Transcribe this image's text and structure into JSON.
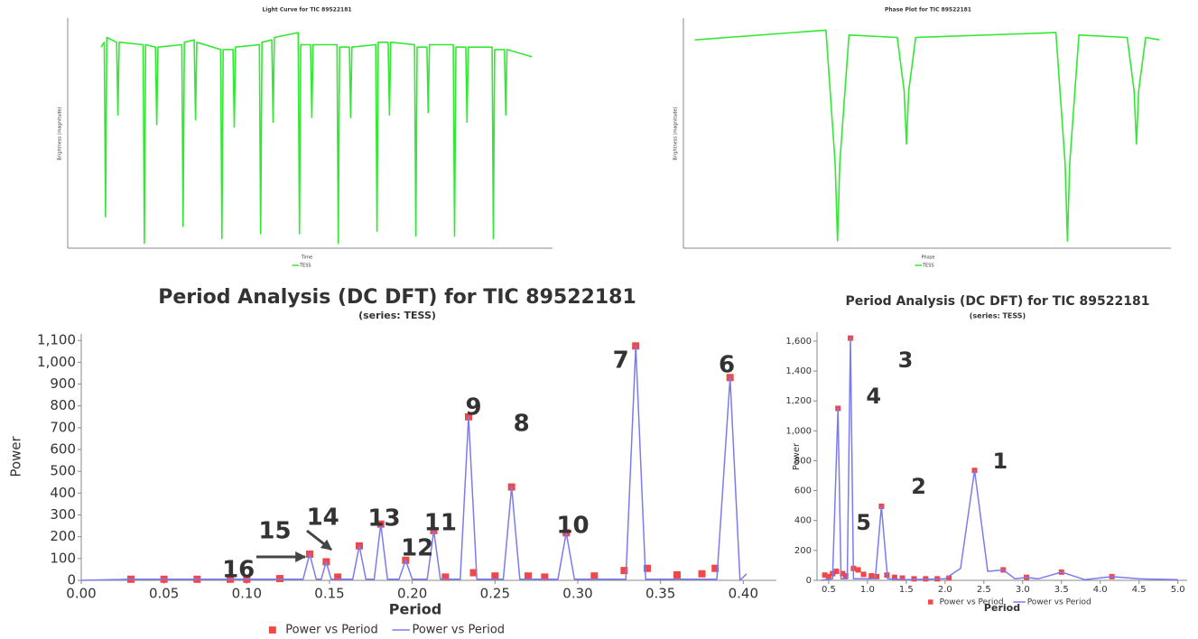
{
  "chart_data": [
    {
      "type": "line",
      "title": "Light Curve for TIC 89522181",
      "x_label": "Time",
      "y_label": "Brightness (magnitude)",
      "xlim": [
        -2.1,
        28.4
      ],
      "ylim": [
        10.15,
        9.2
      ],
      "series": [
        {
          "name": "TESS",
          "color": "#33e833",
          "x": [
            0,
            0.2,
            0.28,
            0.36,
            0.98,
            1.06,
            1.14,
            2.64,
            2.72,
            2.8,
            3.42,
            3.5,
            3.58,
            5.08,
            5.16,
            5.24,
            5.86,
            5.94,
            6.02,
            7.52,
            7.6,
            7.68,
            8.3,
            8.38,
            8.46,
            9.96,
            10.04,
            10.12,
            10.74,
            10.82,
            10.9,
            12.4,
            12.48,
            12.56,
            13.18,
            13.26,
            13.34,
            14.84,
            14.92,
            15.0,
            15.62,
            15.7,
            15.78,
            17.28,
            17.36,
            17.44,
            18.06,
            18.14,
            18.22,
            19.72,
            19.8,
            19.88,
            20.5,
            20.58,
            20.66,
            22.16,
            22.24,
            22.32,
            22.94,
            23.02,
            23.1,
            24.6,
            24.68,
            24.76,
            25.38,
            25.46,
            25.54,
            27.1
          ],
          "values": [
            9.32,
            9.3,
            10.02,
            9.28,
            9.3,
            9.6,
            9.3,
            9.31,
            10.13,
            9.31,
            9.32,
            9.64,
            9.32,
            9.31,
            10.06,
            9.3,
            9.29,
            9.62,
            9.3,
            9.33,
            10.11,
            9.33,
            9.33,
            9.65,
            9.32,
            9.31,
            10.09,
            9.3,
            9.29,
            9.63,
            9.28,
            9.26,
            10.09,
            9.31,
            9.31,
            9.61,
            9.31,
            9.31,
            10.13,
            9.32,
            9.32,
            9.61,
            9.32,
            9.31,
            10.08,
            9.3,
            9.3,
            9.6,
            9.3,
            9.31,
            10.1,
            9.32,
            9.32,
            9.59,
            9.31,
            9.31,
            10.1,
            9.32,
            9.32,
            9.63,
            9.32,
            9.32,
            10.11,
            9.33,
            9.33,
            9.6,
            9.33,
            9.36
          ]
        }
      ]
    },
    {
      "type": "line",
      "title": "Phase Plot for TIC 89522181",
      "x_label": "Phase",
      "y_label": "Brightness (magnitude)",
      "xlim": [
        -0.67,
        1.45
      ],
      "ylim": [
        10.15,
        9.2
      ],
      "series": [
        {
          "name": "TESS",
          "color": "#33e833",
          "x": [
            -0.62,
            -0.05,
            -0.01,
            0.0,
            0.01,
            0.05,
            0.26,
            0.29,
            0.3,
            0.31,
            0.34,
            0.95,
            0.99,
            1.0,
            1.01,
            1.05,
            1.26,
            1.29,
            1.3,
            1.31,
            1.34,
            1.4
          ],
          "values": [
            9.29,
            9.25,
            9.8,
            10.12,
            9.8,
            9.27,
            9.28,
            9.5,
            9.72,
            9.5,
            9.28,
            9.26,
            9.8,
            10.12,
            9.8,
            9.27,
            9.28,
            9.5,
            9.72,
            9.5,
            9.28,
            9.29
          ]
        }
      ]
    },
    {
      "type": "line",
      "title": "Period Analysis (DC DFT) for TIC 89522181",
      "subtitle": "(series: TESS)",
      "x_label": "Period",
      "y_label": "Power",
      "xlim": [
        0,
        0.42
      ],
      "ylim": [
        0,
        1130
      ],
      "xticks": [
        {
          "value": 0,
          "label": "0.00"
        },
        {
          "value": 0.05,
          "label": "0.05"
        },
        {
          "value": 0.1,
          "label": "0.10"
        },
        {
          "value": 0.15,
          "label": "0.15"
        },
        {
          "value": 0.2,
          "label": "0.20"
        },
        {
          "value": 0.25,
          "label": "0.25"
        },
        {
          "value": 0.3,
          "label": "0.30"
        },
        {
          "value": 0.35,
          "label": "0.35"
        },
        {
          "value": 0.4,
          "label": "0.40"
        }
      ],
      "yticks": [
        0,
        100,
        200,
        300,
        400,
        500,
        600,
        700,
        800,
        900,
        {
          "value": 1000,
          "label": "1,000"
        },
        {
          "value": 1100,
          "label": "1,100"
        }
      ],
      "series": [
        {
          "name": "Power vs Period",
          "color": "#f04848",
          "marker": "square",
          "x": [
            0.03,
            0.05,
            0.07,
            0.09,
            0.1,
            0.12,
            0.138,
            0.148,
            0.155,
            0.168,
            0.181,
            0.196,
            0.213,
            0.22,
            0.234,
            0.237,
            0.25,
            0.26,
            0.27,
            0.28,
            0.293,
            0.31,
            0.328,
            0.335,
            0.342,
            0.36,
            0.375,
            0.383,
            0.392
          ],
          "values": [
            5,
            5,
            5,
            5,
            5,
            8,
            120,
            85,
            15,
            158,
            258,
            92,
            228,
            15,
            750,
            35,
            20,
            428,
            20,
            15,
            218,
            20,
            45,
            1075,
            55,
            25,
            30,
            55,
            930
          ]
        },
        {
          "name": "Power vs Period",
          "color": "#7b7bf0",
          "x": [
            0.0,
            0.03,
            0.134,
            0.138,
            0.142,
            0.145,
            0.148,
            0.151,
            0.164,
            0.168,
            0.172,
            0.177,
            0.181,
            0.185,
            0.192,
            0.196,
            0.2,
            0.209,
            0.213,
            0.217,
            0.229,
            0.234,
            0.239,
            0.255,
            0.26,
            0.265,
            0.288,
            0.293,
            0.298,
            0.329,
            0.335,
            0.341,
            0.384,
            0.392,
            0.398,
            0.402
          ],
          "values": [
            0,
            5,
            5,
            120,
            5,
            5,
            85,
            5,
            5,
            158,
            5,
            5,
            258,
            5,
            5,
            92,
            5,
            5,
            228,
            5,
            5,
            750,
            5,
            5,
            428,
            5,
            5,
            218,
            5,
            5,
            1075,
            5,
            5,
            930,
            0,
            30
          ]
        }
      ],
      "annotations": [
        {
          "text": "6",
          "x": 0.39,
          "y": 985
        },
        {
          "text": "7",
          "x": 0.326,
          "y": 1006
        },
        {
          "text": "8",
          "x": 0.266,
          "y": 716
        },
        {
          "text": "9",
          "x": 0.237,
          "y": 790
        },
        {
          "text": "10",
          "x": 0.297,
          "y": 248
        },
        {
          "text": "11",
          "x": 0.217,
          "y": 261
        },
        {
          "text": "12",
          "x": 0.203,
          "y": 145
        },
        {
          "text": "13",
          "x": 0.183,
          "y": 281
        },
        {
          "text": "14",
          "x": 0.146,
          "y": 286
        },
        {
          "text": "15",
          "x": 0.117,
          "y": 224
        },
        {
          "text": "16",
          "x": 0.095,
          "y": 46
        }
      ]
    },
    {
      "type": "line",
      "title": "Period Analysis (DC DFT) for TIC 89522181",
      "subtitle": "(series: TESS)",
      "x_label": "Period",
      "y_label": "Power",
      "xlim": [
        0.35,
        5.12
      ],
      "ylim": [
        0,
        1660
      ],
      "xticks": [
        0.5,
        {
          "value": 1,
          "label": "1.0"
        },
        1.5,
        {
          "value": 2,
          "label": "2.0"
        },
        2.5,
        {
          "value": 3,
          "label": "3.0"
        },
        3.5,
        {
          "value": 4,
          "label": "4.0"
        },
        4.5,
        {
          "value": 5,
          "label": "5.0"
        }
      ],
      "yticks": [
        0,
        200,
        400,
        600,
        800,
        {
          "value": 1000,
          "label": "1,000"
        },
        {
          "value": 1200,
          "label": "1,200"
        },
        {
          "value": 1400,
          "label": "1,400"
        },
        {
          "value": 1600,
          "label": "1,600"
        }
      ],
      "series": [
        {
          "name": "Power vs Period",
          "color": "#f04848",
          "marker": "square",
          "x": [
            0.45,
            0.5,
            0.55,
            0.6,
            0.62,
            0.68,
            0.72,
            0.78,
            0.82,
            0.88,
            0.95,
            1.05,
            1.12,
            1.18,
            1.25,
            1.35,
            1.45,
            1.6,
            1.75,
            1.9,
            2.05,
            2.38,
            2.75,
            3.05,
            3.5,
            4.15
          ],
          "values": [
            35,
            25,
            45,
            60,
            1150,
            45,
            30,
            1620,
            80,
            70,
            40,
            30,
            25,
            495,
            35,
            20,
            15,
            10,
            10,
            10,
            15,
            735,
            70,
            20,
            55,
            25
          ]
        },
        {
          "name": "Power vs Period",
          "color": "#7b7bf0",
          "x": [
            0.4,
            0.55,
            0.62,
            0.66,
            0.74,
            0.78,
            0.82,
            1.1,
            1.18,
            1.26,
            1.5,
            2.0,
            2.2,
            2.38,
            2.55,
            2.75,
            2.9,
            3.05,
            3.2,
            3.5,
            3.8,
            4.15,
            4.5,
            5.0
          ],
          "values": [
            0,
            10,
            1150,
            10,
            10,
            1620,
            10,
            10,
            495,
            10,
            5,
            10,
            80,
            735,
            60,
            70,
            10,
            20,
            10,
            55,
            5,
            25,
            10,
            5
          ]
        }
      ],
      "annotations": [
        {
          "text": "3",
          "x": 1.49,
          "y": 1467
        },
        {
          "text": "4",
          "x": 1.08,
          "y": 1225
        },
        {
          "text": "2",
          "x": 1.66,
          "y": 622
        },
        {
          "text": "1",
          "x": 2.71,
          "y": 791
        },
        {
          "text": "5",
          "x": 0.95,
          "y": 380
        }
      ]
    }
  ]
}
